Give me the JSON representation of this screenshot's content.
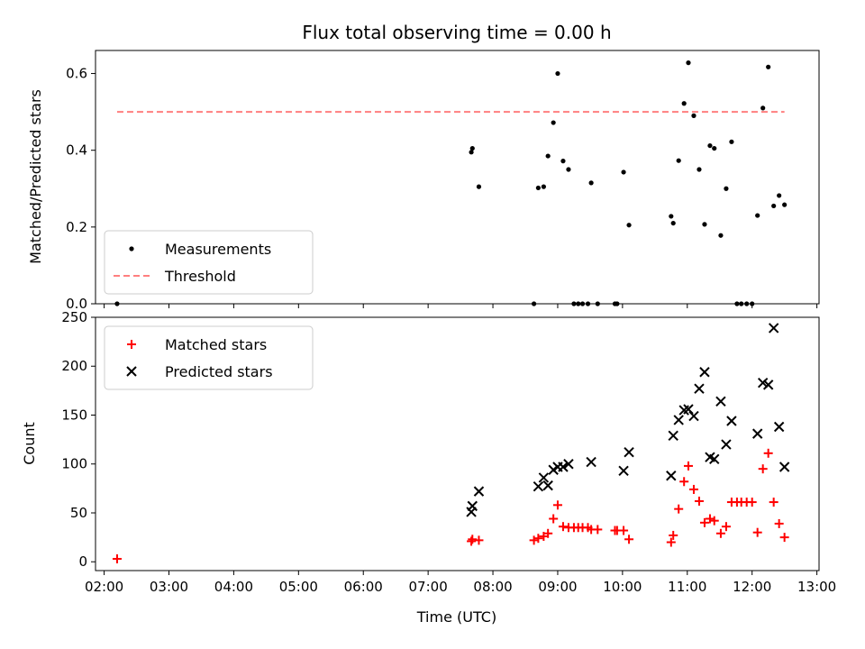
{
  "chart_data": [
    {
      "type": "scatter",
      "title": "Flux total observing time = 0.00 h",
      "xlabel": "",
      "ylabel": "Matched/Predicted stars",
      "xlim": [
        "01:52",
        "13:02"
      ],
      "ylim": [
        0,
        0.66
      ],
      "yticks": [
        "0.0",
        "0.2",
        "0.4",
        "0.6"
      ],
      "legend_position": "lower-left",
      "series": [
        {
          "name": "Measurements",
          "color": "#000000",
          "marker": "dot",
          "points": [
            [
              "02:12",
              0.0
            ],
            [
              "07:40",
              0.395
            ],
            [
              "07:41",
              0.405
            ],
            [
              "07:47",
              0.305
            ],
            [
              "08:38",
              0.0
            ],
            [
              "08:42",
              0.302
            ],
            [
              "08:47",
              0.305
            ],
            [
              "08:51",
              0.385
            ],
            [
              "08:56",
              0.472
            ],
            [
              "09:00",
              0.6
            ],
            [
              "09:05",
              0.372
            ],
            [
              "09:10",
              0.35
            ],
            [
              "09:15",
              0.0
            ],
            [
              "09:19",
              0.0
            ],
            [
              "09:23",
              0.0
            ],
            [
              "09:28",
              0.0
            ],
            [
              "09:31",
              0.315
            ],
            [
              "09:37",
              0.0
            ],
            [
              "09:53",
              0.0
            ],
            [
              "09:55",
              0.0
            ],
            [
              "10:01",
              0.343
            ],
            [
              "10:06",
              0.205
            ],
            [
              "10:45",
              0.228
            ],
            [
              "10:47",
              0.21
            ],
            [
              "10:52",
              0.373
            ],
            [
              "10:57",
              0.522
            ],
            [
              "11:01",
              0.628
            ],
            [
              "11:06",
              0.49
            ],
            [
              "11:11",
              0.35
            ],
            [
              "11:16",
              0.207
            ],
            [
              "11:21",
              0.412
            ],
            [
              "11:25",
              0.405
            ],
            [
              "11:31",
              0.178
            ],
            [
              "11:36",
              0.3
            ],
            [
              "11:41",
              0.422
            ],
            [
              "11:46",
              0.0
            ],
            [
              "11:50",
              0.0
            ],
            [
              "11:55",
              0.0
            ],
            [
              "12:00",
              0.0
            ],
            [
              "12:05",
              0.23
            ],
            [
              "12:10",
              0.51
            ],
            [
              "12:15",
              0.617
            ],
            [
              "12:20",
              0.255
            ],
            [
              "12:25",
              0.282
            ],
            [
              "12:30",
              0.258
            ]
          ]
        },
        {
          "name": "Threshold",
          "color": "#ff7f7f",
          "style": "dashed",
          "points": [
            [
              "02:12",
              0.5
            ],
            [
              "12:30",
              0.5
            ]
          ]
        }
      ]
    },
    {
      "type": "scatter",
      "title": "",
      "xlabel": "Time (UTC)",
      "ylabel": "Count",
      "xlim": [
        "01:52",
        "13:02"
      ],
      "ylim": [
        -9,
        250
      ],
      "yticks": [
        "0",
        "50",
        "100",
        "150",
        "200",
        "250"
      ],
      "xticks": [
        "02:00",
        "03:00",
        "04:00",
        "05:00",
        "06:00",
        "07:00",
        "08:00",
        "09:00",
        "10:00",
        "11:00",
        "12:00",
        "13:00"
      ],
      "legend_position": "upper-left",
      "series": [
        {
          "name": "Matched stars",
          "color": "#ff0000",
          "marker": "plus",
          "points": [
            [
              "02:12",
              3
            ],
            [
              "07:40",
              21
            ],
            [
              "07:41",
              23
            ],
            [
              "07:47",
              22
            ],
            [
              "08:38",
              22
            ],
            [
              "08:42",
              24
            ],
            [
              "08:47",
              26
            ],
            [
              "08:51",
              29
            ],
            [
              "08:56",
              44
            ],
            [
              "09:00",
              58
            ],
            [
              "09:05",
              36
            ],
            [
              "09:10",
              35
            ],
            [
              "09:15",
              35
            ],
            [
              "09:19",
              35
            ],
            [
              "09:23",
              35
            ],
            [
              "09:28",
              35
            ],
            [
              "09:31",
              33
            ],
            [
              "09:37",
              33
            ],
            [
              "09:53",
              32
            ],
            [
              "09:55",
              32
            ],
            [
              "10:01",
              32
            ],
            [
              "10:06",
              23
            ],
            [
              "10:45",
              20
            ],
            [
              "10:47",
              27
            ],
            [
              "10:52",
              54
            ],
            [
              "10:57",
              82
            ],
            [
              "11:01",
              98
            ],
            [
              "11:06",
              74
            ],
            [
              "11:11",
              62
            ],
            [
              "11:16",
              40
            ],
            [
              "11:21",
              44
            ],
            [
              "11:25",
              42
            ],
            [
              "11:31",
              29
            ],
            [
              "11:36",
              36
            ],
            [
              "11:41",
              61
            ],
            [
              "11:46",
              61
            ],
            [
              "11:50",
              61
            ],
            [
              "11:55",
              61
            ],
            [
              "12:00",
              61
            ],
            [
              "12:05",
              30
            ],
            [
              "12:10",
              95
            ],
            [
              "12:15",
              111
            ],
            [
              "12:20",
              61
            ],
            [
              "12:25",
              39
            ],
            [
              "12:30",
              25
            ]
          ]
        },
        {
          "name": "Predicted stars",
          "color": "#000000",
          "marker": "x",
          "points": [
            [
              "07:40",
              51
            ],
            [
              "07:41",
              57
            ],
            [
              "07:47",
              72
            ],
            [
              "08:42",
              77
            ],
            [
              "08:47",
              86
            ],
            [
              "08:51",
              78
            ],
            [
              "08:56",
              94
            ],
            [
              "09:00",
              97
            ],
            [
              "09:05",
              97
            ],
            [
              "09:10",
              100
            ],
            [
              "09:31",
              102
            ],
            [
              "10:01",
              93
            ],
            [
              "10:06",
              112
            ],
            [
              "10:45",
              88
            ],
            [
              "10:47",
              129
            ],
            [
              "10:52",
              145
            ],
            [
              "10:57",
              155
            ],
            [
              "11:01",
              156
            ],
            [
              "11:06",
              149
            ],
            [
              "11:11",
              177
            ],
            [
              "11:16",
              194
            ],
            [
              "11:21",
              107
            ],
            [
              "11:25",
              105
            ],
            [
              "11:31",
              164
            ],
            [
              "11:36",
              120
            ],
            [
              "11:41",
              144
            ],
            [
              "12:05",
              131
            ],
            [
              "12:10",
              183
            ],
            [
              "12:15",
              181
            ],
            [
              "12:20",
              239
            ],
            [
              "12:25",
              138
            ],
            [
              "12:30",
              97
            ]
          ]
        }
      ]
    }
  ]
}
